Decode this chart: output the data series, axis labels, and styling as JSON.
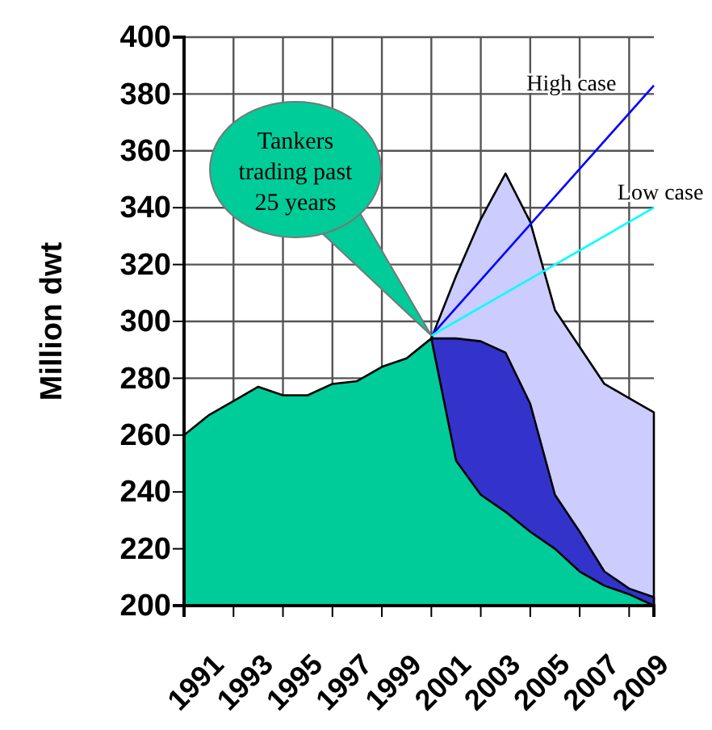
{
  "chart_data": {
    "type": "area",
    "ylabel": "Million dwt",
    "x": [
      1991,
      1992,
      1993,
      1994,
      1995,
      1996,
      1997,
      1998,
      1999,
      2000,
      2001,
      2002,
      2003,
      2004,
      2005,
      2006,
      2007,
      2008,
      2009,
      2010
    ],
    "xlim": [
      1991,
      2010
    ],
    "xticks": [
      1991,
      1993,
      1995,
      1997,
      1999,
      2001,
      2003,
      2005,
      2007,
      2009
    ],
    "ylim": [
      200,
      400
    ],
    "yticks": [
      200,
      220,
      240,
      260,
      280,
      300,
      320,
      340,
      360,
      380,
      400
    ],
    "grid": true,
    "series": [
      {
        "color": "#ccccff",
        "values": [
          null,
          null,
          null,
          null,
          null,
          null,
          null,
          null,
          null,
          null,
          294,
          316,
          336,
          352,
          335,
          304,
          291,
          278,
          273,
          268
        ]
      },
      {
        "color": "#3333cc",
        "values": [
          null,
          null,
          null,
          null,
          null,
          null,
          null,
          null,
          null,
          null,
          294,
          294,
          293,
          289,
          271,
          239,
          226,
          212,
          206,
          203
        ]
      },
      {
        "color": "#00cc99",
        "values": [
          260,
          267,
          272,
          277,
          274,
          274,
          278,
          279,
          284,
          287,
          294,
          251,
          239,
          233,
          226,
          220,
          212,
          207,
          204,
          200
        ]
      },
      {
        "type": "line",
        "name": "High case",
        "color": "#0000ff",
        "values": [
          null,
          null,
          null,
          null,
          null,
          null,
          null,
          null,
          null,
          null,
          295,
          null,
          null,
          null,
          null,
          null,
          null,
          null,
          null,
          383
        ]
      },
      {
        "type": "line",
        "name": "Low case",
        "color": "#00ffff",
        "values": [
          null,
          null,
          null,
          null,
          null,
          null,
          null,
          null,
          null,
          null,
          295,
          null,
          null,
          null,
          null,
          null,
          null,
          null,
          null,
          340
        ]
      }
    ],
    "annotations": [
      "Tankers trading past 25 years"
    ]
  }
}
